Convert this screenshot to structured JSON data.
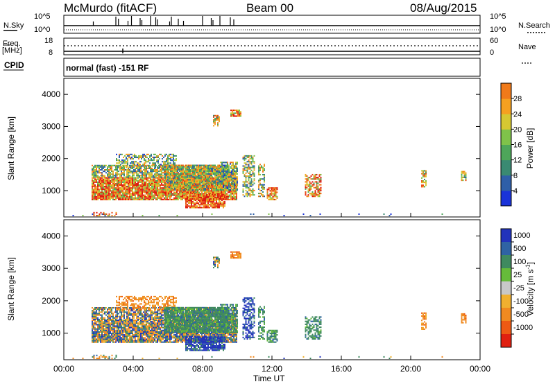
{
  "header": {
    "station": "McMurdo (fitACF)",
    "beam": "Beam 00",
    "date": "08/Aug/2015"
  },
  "noise_panel": {
    "left_label": "N.Sky",
    "right_label": "N.Search",
    "left_ticks": [
      "10^5",
      "10^0"
    ],
    "right_ticks": [
      "10^5",
      "10^0"
    ]
  },
  "freq_panel": {
    "left_label_top": "Freq.",
    "left_label_unit": "[MHz]",
    "right_label": "Nave",
    "left_ticks": [
      "18",
      "8"
    ],
    "right_ticks": [
      "60",
      "0"
    ]
  },
  "cpid_panel": {
    "label": "CPID",
    "value": "normal (fast) -151 RF"
  },
  "chart_data": [
    {
      "type": "heatmap",
      "name": "power",
      "ylabel": "Slant Range [km]",
      "ylim": [
        180,
        4500
      ],
      "yticks": [
        "1000",
        "2000",
        "3000",
        "4000"
      ],
      "colorbar": {
        "label": "Power [dB]",
        "ticks": [
          "4",
          "8",
          "12",
          "16",
          "20",
          "24",
          "28"
        ],
        "colors": [
          "#1a33d9",
          "#2f5fa8",
          "#3a8a72",
          "#4ea65a",
          "#7fc24a",
          "#d6c832",
          "#f5a020",
          "#f07a1a",
          "#e84a14",
          "#dd1a10"
        ]
      }
    },
    {
      "type": "heatmap",
      "name": "velocity",
      "ylabel": "Slant Range [km]",
      "ylim": [
        180,
        4500
      ],
      "yticks": [
        "1000",
        "2000",
        "3000",
        "4000"
      ],
      "colorbar": {
        "label": "Velocity [m s",
        "label_sup": "-1",
        "label_end": "]",
        "ticks": [
          "1000",
          "500",
          "100",
          "25",
          "-25",
          "-100",
          "-500",
          "-1000"
        ],
        "colors": [
          "#2233bb",
          "#2f63a4",
          "#3f8a5f",
          "#66bb3a",
          "#c8c8c8",
          "#f0b030",
          "#f08a20",
          "#ee5a14",
          "#e02010"
        ]
      }
    }
  ],
  "xaxis": {
    "label": "Time UT",
    "ticks": [
      "00:00",
      "04:00",
      "08:00",
      "12:00",
      "16:00",
      "20:00",
      "00:00"
    ]
  }
}
